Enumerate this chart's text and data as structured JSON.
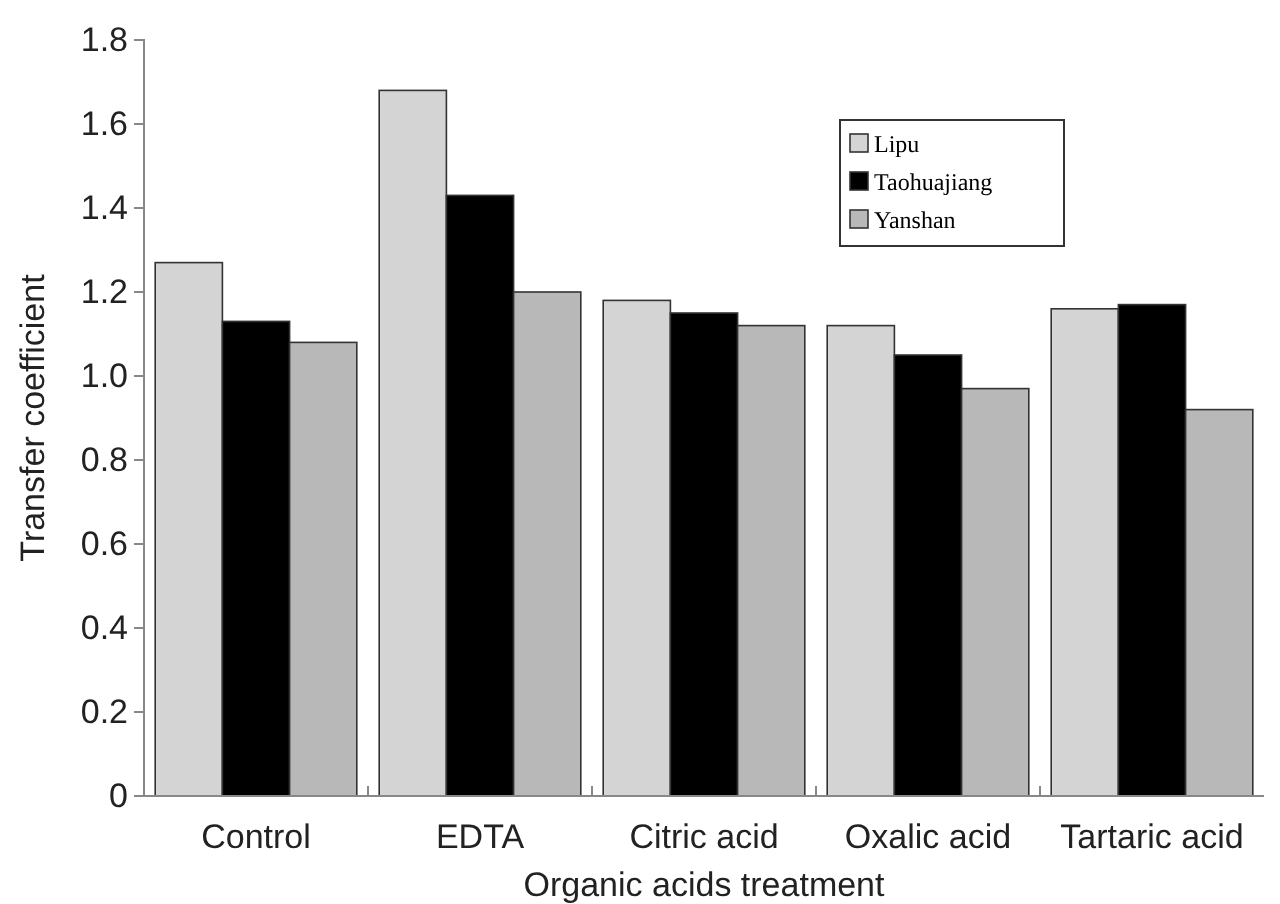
{
  "chart_data": {
    "type": "bar",
    "xlabel": "Organic acids treatment",
    "ylabel": "Transfer coefficient",
    "categories": [
      "Control",
      "EDTA",
      "Citric acid",
      "Oxalic acid",
      "Tartaric acid"
    ],
    "series": [
      {
        "name": "Lipu",
        "color": "#d4d4d4",
        "values": [
          1.27,
          1.68,
          1.18,
          1.12,
          1.16
        ]
      },
      {
        "name": "Taohuajiang",
        "color": "#000000",
        "values": [
          1.13,
          1.43,
          1.15,
          1.05,
          1.17
        ]
      },
      {
        "name": "Yanshan",
        "color": "#b8b8b8",
        "values": [
          1.08,
          1.2,
          1.12,
          0.97,
          0.92
        ]
      }
    ],
    "ylim": [
      0,
      1.8
    ],
    "yticks": [
      {
        "value": 0,
        "label": "0"
      },
      {
        "value": 0.2,
        "label": "0.2"
      },
      {
        "value": 0.4,
        "label": "0.4"
      },
      {
        "value": 0.6,
        "label": "0.6"
      },
      {
        "value": 0.8,
        "label": "0.8"
      },
      {
        "value": 1.0,
        "label": "1.0"
      },
      {
        "value": 1.2,
        "label": "1.2"
      },
      {
        "value": 1.4,
        "label": "1.4"
      },
      {
        "value": 1.6,
        "label": "1.6"
      },
      {
        "value": 1.8,
        "label": "1.8"
      }
    ],
    "grid": false,
    "legend": "top right"
  }
}
